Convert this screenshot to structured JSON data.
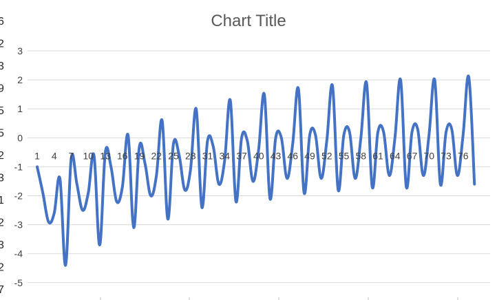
{
  "chart_data": {
    "type": "line",
    "title": "Chart Title",
    "xlabel": "",
    "ylabel": "",
    "ylim": [
      -5,
      3
    ],
    "yticks": [
      3,
      2,
      1,
      0,
      -1,
      -2,
      -3,
      -4,
      -5
    ],
    "grid": "horizontal",
    "legend": "none",
    "xtick_labels": [
      "1",
      "4",
      "7",
      "10",
      "13",
      "16",
      "19",
      "22",
      "25",
      "28",
      "31",
      "34",
      "37",
      "40",
      "43",
      "46",
      "49",
      "52",
      "55",
      "58",
      "61",
      "64",
      "67",
      "70",
      "73",
      "76"
    ],
    "x": [
      1,
      2,
      3,
      4,
      5,
      6,
      7,
      8,
      9,
      10,
      11,
      12,
      13,
      14,
      15,
      16,
      17,
      18,
      19,
      20,
      21,
      22,
      23,
      24,
      25,
      26,
      27,
      28,
      29,
      30,
      31,
      32,
      33,
      34,
      35,
      36,
      37,
      38,
      39,
      40,
      41,
      42,
      43,
      44,
      45,
      46,
      47,
      48,
      49,
      50,
      51,
      52,
      53,
      54,
      55,
      56,
      57,
      58,
      59,
      60,
      61,
      62,
      63,
      64,
      65,
      66,
      67,
      68,
      69,
      70,
      71,
      72,
      73,
      74,
      75,
      76,
      77,
      78
    ],
    "series": [
      {
        "values": [
          -1.0,
          -1.9,
          -2.9,
          -2.6,
          -1.4,
          -4.4,
          -0.7,
          -1.6,
          -2.5,
          -1.9,
          -0.6,
          -3.7,
          -0.5,
          -1.0,
          -2.2,
          -1.7,
          0.1,
          -3.1,
          -0.3,
          -0.9,
          -2.0,
          -1.3,
          0.6,
          -2.8,
          -0.2,
          -0.6,
          -1.8,
          -1.1,
          1.0,
          -2.4,
          -0.1,
          -0.3,
          -1.6,
          -0.8,
          1.3,
          -2.2,
          0.0,
          -0.1,
          -1.5,
          -0.4,
          1.5,
          -2.1,
          0.0,
          0.0,
          -1.4,
          -0.2,
          1.7,
          -1.9,
          0.1,
          0.1,
          -1.4,
          -0.1,
          1.8,
          -1.8,
          0.1,
          0.2,
          -1.4,
          0.0,
          1.9,
          -1.7,
          0.2,
          0.2,
          -1.3,
          0.0,
          2.0,
          -1.7,
          0.2,
          0.3,
          -1.3,
          0.1,
          2.0,
          -1.6,
          0.2,
          0.3,
          -1.3,
          0.1,
          2.1,
          -1.6
        ],
        "color": "#4472c4"
      }
    ]
  },
  "edge_glyphs": [
    "6",
    "2",
    "3",
    "9",
    "5",
    "5",
    "2",
    "3",
    "1",
    "2",
    "3",
    "2",
    "7"
  ]
}
